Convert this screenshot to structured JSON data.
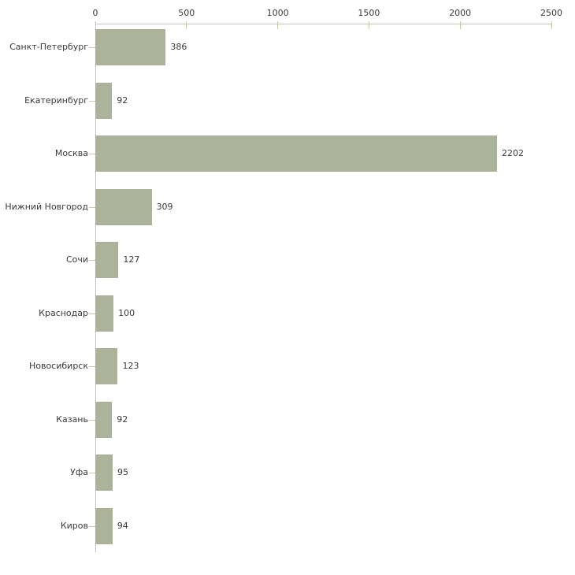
{
  "chart_data": {
    "type": "bar",
    "orientation": "horizontal",
    "title": "",
    "xlabel": "",
    "ylabel": "",
    "categories": [
      "Санкт-Петербург",
      "Екатеринбург",
      "Москва",
      "Нижний Новгород",
      "Сочи",
      "Краснодар",
      "Новосибирск",
      "Казань",
      "Уфа",
      "Киров"
    ],
    "values": [
      386,
      92,
      2202,
      309,
      127,
      100,
      123,
      92,
      95,
      94
    ],
    "xlim": [
      0,
      2500
    ],
    "x_ticks": [
      0,
      500,
      1000,
      1500,
      2000,
      2500
    ],
    "axis_position": "top",
    "grid": false,
    "legend": null,
    "colors": {
      "bar": "#abb49a",
      "axis_line": "#c3c3c3",
      "tick": "#c9c9a3",
      "text": "#3a3a3a",
      "background": "#ffffff"
    }
  }
}
